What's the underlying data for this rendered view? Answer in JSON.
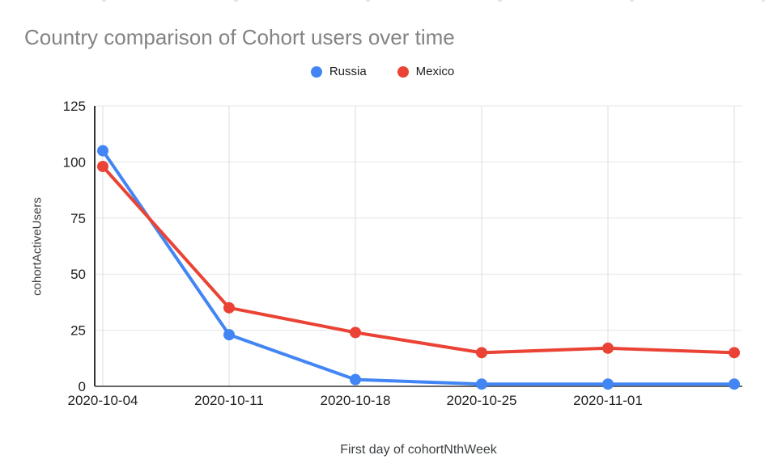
{
  "chart_data": {
    "type": "line",
    "title": "Country comparison of Cohort users over time",
    "xlabel": "First day of cohortNthWeek",
    "ylabel": "cohortActiveUsers",
    "categories": [
      "2020-10-04",
      "2020-10-11",
      "2020-10-18",
      "2020-10-25",
      "2020-11-01",
      ""
    ],
    "series": [
      {
        "name": "Russia",
        "color": "#4285f4",
        "values": [
          105,
          23,
          3,
          1,
          1,
          1
        ]
      },
      {
        "name": "Mexico",
        "color": "#ea4335",
        "values": [
          98,
          35,
          24,
          15,
          17,
          15
        ]
      }
    ],
    "ylim": [
      0,
      125
    ],
    "yticks": [
      0,
      25,
      50,
      75,
      100,
      125
    ],
    "grid": true,
    "legend_position": "top-center"
  },
  "colors": {
    "h_grid": "#e6e6e6",
    "v_grid": "#dcdcdc",
    "y_axis_line": "#333333",
    "x_axis_line": "#666666",
    "tick_label": "#202124",
    "title": "#838383"
  }
}
